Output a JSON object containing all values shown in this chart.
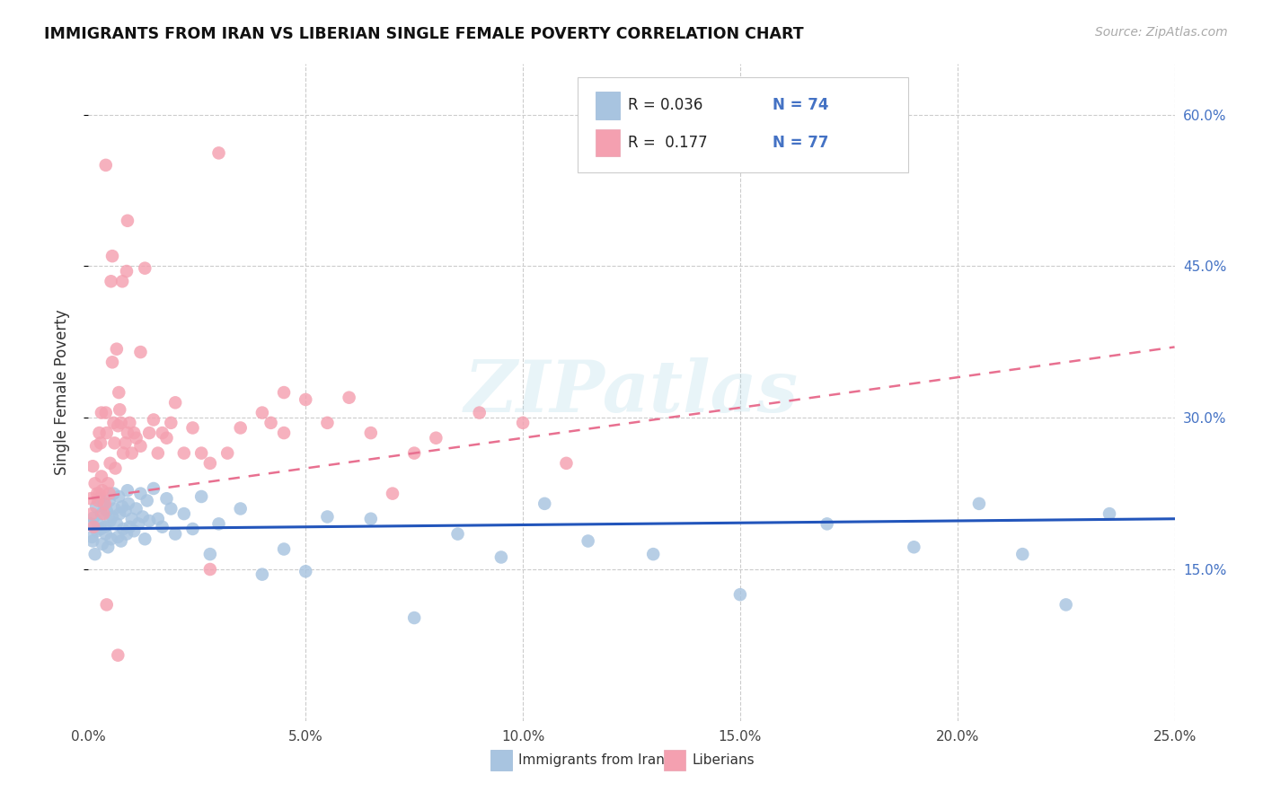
{
  "title": "IMMIGRANTS FROM IRAN VS LIBERIAN SINGLE FEMALE POVERTY CORRELATION CHART",
  "source": "Source: ZipAtlas.com",
  "ylabel": "Single Female Poverty",
  "legend_label1": "Immigrants from Iran",
  "legend_label2": "Liberians",
  "r1_text": "R = 0.036",
  "n1_text": "N = 74",
  "r2_text": "R =  0.177",
  "n2_text": "N = 77",
  "x_min": 0.0,
  "x_max": 25.0,
  "y_min": 0.0,
  "y_max": 65.0,
  "yticks": [
    15.0,
    30.0,
    45.0,
    60.0
  ],
  "xticks": [
    0.0,
    5.0,
    10.0,
    15.0,
    20.0,
    25.0
  ],
  "color_blue": "#a8c4e0",
  "color_pink": "#f4a0b0",
  "color_blue_line": "#2255bb",
  "color_pink_line": "#e87090",
  "watermark": "ZIPatlas",
  "blue_intercept": 19.0,
  "blue_slope": 0.04,
  "pink_intercept": 22.0,
  "pink_slope": 0.6,
  "blue_x": [
    0.05,
    0.08,
    0.1,
    0.12,
    0.15,
    0.18,
    0.2,
    0.22,
    0.25,
    0.28,
    0.3,
    0.32,
    0.35,
    0.38,
    0.4,
    0.42,
    0.45,
    0.48,
    0.5,
    0.52,
    0.55,
    0.58,
    0.6,
    0.65,
    0.68,
    0.7,
    0.72,
    0.75,
    0.78,
    0.8,
    0.85,
    0.88,
    0.9,
    0.92,
    0.95,
    1.0,
    1.05,
    1.1,
    1.15,
    1.2,
    1.25,
    1.3,
    1.35,
    1.4,
    1.5,
    1.6,
    1.7,
    1.8,
    1.9,
    2.0,
    2.2,
    2.4,
    2.6,
    2.8,
    3.0,
    3.5,
    4.0,
    4.5,
    5.0,
    5.5,
    6.5,
    7.5,
    8.5,
    9.5,
    10.5,
    11.5,
    13.0,
    15.0,
    17.0,
    19.0,
    20.5,
    21.5,
    22.5,
    23.5
  ],
  "blue_y": [
    19.5,
    18.2,
    17.8,
    20.1,
    16.5,
    21.2,
    18.8,
    19.5,
    22.0,
    19.0,
    20.5,
    17.5,
    21.5,
    19.2,
    18.5,
    20.8,
    17.2,
    21.8,
    19.8,
    18.0,
    20.2,
    22.5,
    21.0,
    19.5,
    18.2,
    22.2,
    20.5,
    17.8,
    21.2,
    19.0,
    20.8,
    18.5,
    22.8,
    21.5,
    19.2,
    20.0,
    18.8,
    21.0,
    19.5,
    22.5,
    20.2,
    18.0,
    21.8,
    19.8,
    23.0,
    20.0,
    19.2,
    22.0,
    21.0,
    18.5,
    20.5,
    19.0,
    22.2,
    16.5,
    19.5,
    21.0,
    14.5,
    17.0,
    14.8,
    20.2,
    20.0,
    10.2,
    18.5,
    16.2,
    21.5,
    17.8,
    16.5,
    12.5,
    19.5,
    17.2,
    21.5,
    16.5,
    11.5,
    20.5
  ],
  "pink_x": [
    0.05,
    0.08,
    0.1,
    0.12,
    0.15,
    0.18,
    0.2,
    0.22,
    0.25,
    0.28,
    0.3,
    0.32,
    0.35,
    0.38,
    0.4,
    0.42,
    0.45,
    0.48,
    0.5,
    0.52,
    0.55,
    0.58,
    0.6,
    0.62,
    0.65,
    0.68,
    0.7,
    0.72,
    0.75,
    0.78,
    0.8,
    0.85,
    0.88,
    0.9,
    0.95,
    1.0,
    1.05,
    1.1,
    1.2,
    1.3,
    1.4,
    1.5,
    1.6,
    1.7,
    1.8,
    1.9,
    2.0,
    2.2,
    2.4,
    2.6,
    2.8,
    3.0,
    3.2,
    3.5,
    4.0,
    4.5,
    5.0,
    5.5,
    6.0,
    6.5,
    7.0,
    7.5,
    8.0,
    9.0,
    10.0,
    11.0,
    0.55,
    0.9,
    0.3,
    1.2,
    2.8,
    0.4,
    4.2,
    4.5,
    0.25,
    0.68,
    0.42
  ],
  "pink_y": [
    22.0,
    20.5,
    25.2,
    19.2,
    23.5,
    27.2,
    22.5,
    21.8,
    28.5,
    27.5,
    24.2,
    22.8,
    20.5,
    21.5,
    30.5,
    28.5,
    23.5,
    22.5,
    25.5,
    43.5,
    35.5,
    29.5,
    27.5,
    25.0,
    36.8,
    29.2,
    32.5,
    30.8,
    29.5,
    43.5,
    26.5,
    27.5,
    44.5,
    28.5,
    29.5,
    26.5,
    28.5,
    28.0,
    27.2,
    44.8,
    28.5,
    29.8,
    26.5,
    28.5,
    28.0,
    29.5,
    31.5,
    26.5,
    29.0,
    26.5,
    25.5,
    56.2,
    26.5,
    29.0,
    30.5,
    32.5,
    31.8,
    29.5,
    32.0,
    28.5,
    22.5,
    26.5,
    28.0,
    30.5,
    29.5,
    25.5,
    46.0,
    49.5,
    30.5,
    36.5,
    15.0,
    55.0,
    29.5,
    28.5,
    22.5,
    6.5,
    11.5
  ]
}
